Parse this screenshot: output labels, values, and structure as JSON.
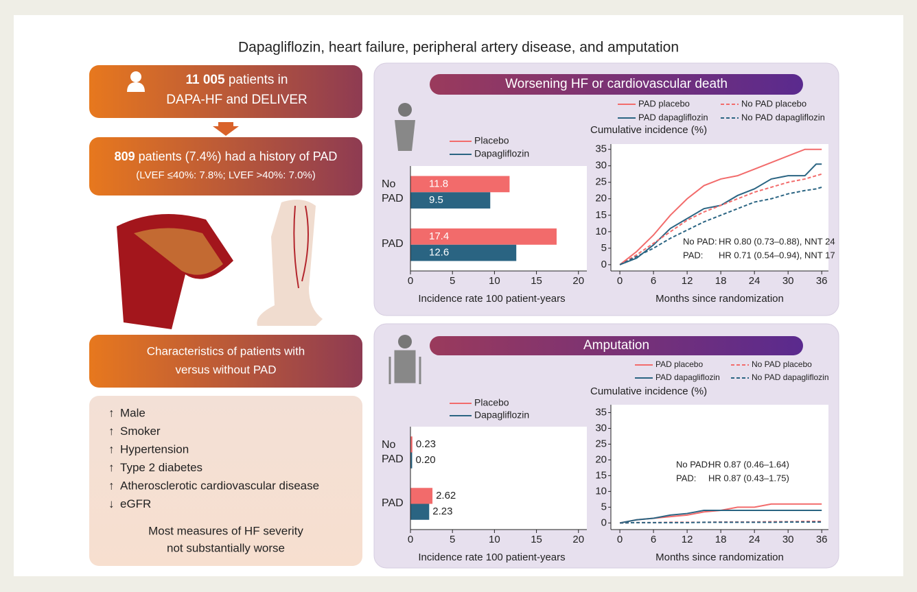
{
  "title": "Dapagliflozin, heart failure, peripheral artery disease, and amputation",
  "left": {
    "box1": {
      "count": "11 005",
      "text1": " patients in",
      "text2": "DAPA-HF and DELIVER"
    },
    "box2": {
      "count": "809",
      "text1": " patients (7.4%) had a history of PAD",
      "text2": "(LVEF ≤40%: 7.8%; LVEF >40%: 7.0%)"
    },
    "box3": {
      "lines": [
        "Characteristics of patients with",
        "versus without PAD"
      ]
    },
    "box4": {
      "items": [
        {
          "arrow": "↑",
          "text": "Male"
        },
        {
          "arrow": "↑",
          "text": "Smoker"
        },
        {
          "arrow": "↑",
          "text": "Hypertension"
        },
        {
          "arrow": "↑",
          "text": "Type 2 diabetes"
        },
        {
          "arrow": "↑",
          "text": "Atherosclerotic cardiovascular disease"
        },
        {
          "arrow": "↓",
          "text": "eGFR"
        }
      ],
      "note": [
        "Most measures of HF severity",
        "not substantially worse"
      ]
    }
  },
  "panels": [
    {
      "title": "Worsening HF or cardiovascular death"
    },
    {
      "title": "Amputation"
    }
  ],
  "chart_data": [
    {
      "type": "bar",
      "orientation": "horizontal",
      "categories": [
        "No PAD",
        "PAD"
      ],
      "series": [
        {
          "name": "Placebo",
          "color": "#f26b6b",
          "values": [
            11.8,
            17.4
          ]
        },
        {
          "name": "Dapagliflozin",
          "color": "#2a6482",
          "values": [
            9.5,
            12.6
          ]
        }
      ],
      "value_label_position": "inside",
      "xlim": [
        0,
        21
      ],
      "xticks": [
        0,
        5,
        10,
        15,
        20
      ],
      "xlabel": "Incidence rate 100 patient-years"
    },
    {
      "type": "line",
      "x": [
        0,
        3,
        6,
        9,
        12,
        15,
        18,
        21,
        24,
        27,
        30,
        33,
        35,
        36
      ],
      "series": [
        {
          "name": "PAD placebo",
          "color": "#f26b6b",
          "dashed": false,
          "values": [
            0,
            4,
            9,
            15,
            20,
            24,
            26,
            27,
            29,
            31,
            33,
            35,
            35,
            35
          ]
        },
        {
          "name": "PAD dapagliflozin",
          "color": "#2a6482",
          "dashed": false,
          "values": [
            0,
            2,
            6,
            11,
            14,
            17,
            18,
            21,
            23,
            26,
            27,
            27,
            30.5,
            30.5
          ]
        },
        {
          "name": "No PAD placebo",
          "color": "#f26b6b",
          "dashed": true,
          "values": [
            0,
            3,
            6.5,
            10,
            13.5,
            16,
            18,
            20,
            22,
            23.5,
            25,
            26,
            27,
            27.5
          ]
        },
        {
          "name": "No PAD dapagliflozin",
          "color": "#2a6482",
          "dashed": true,
          "values": [
            0,
            2.5,
            5,
            8,
            10.5,
            13,
            15,
            17,
            19,
            20,
            21.5,
            22.5,
            23,
            23.5
          ]
        }
      ],
      "xlim": [
        -1.6,
        37.2
      ],
      "xticks": [
        0,
        6,
        12,
        18,
        24,
        30,
        36
      ],
      "ylim": [
        -1.9,
        36.6
      ],
      "yticks": [
        0,
        5,
        10,
        15,
        20,
        25,
        30,
        35
      ],
      "xlabel": "Months since randomization",
      "ylabel": "Cumulative incidence (%)",
      "annotations": [
        {
          "label": "No PAD:",
          "text": "HR 0.80 (0.73–0.88), NNT 24"
        },
        {
          "label": "PAD:",
          "text": "HR 0.71 (0.54–0.94), NNT 17"
        }
      ]
    },
    {
      "type": "bar",
      "orientation": "horizontal",
      "categories": [
        "No PAD",
        "PAD"
      ],
      "series": [
        {
          "name": "Placebo",
          "color": "#f26b6b",
          "values": [
            0.23,
            2.62
          ],
          "value_labels": [
            "0.23",
            "2.62"
          ]
        },
        {
          "name": "Dapagliflozin",
          "color": "#2a6482",
          "values": [
            0.2,
            2.23
          ],
          "value_labels": [
            "0.20",
            "2.23"
          ]
        }
      ],
      "value_label_position": "outside",
      "xlim": [
        0,
        21
      ],
      "xticks": [
        0,
        5,
        10,
        15,
        20
      ],
      "xlabel": "Incidence rate 100 patient-years"
    },
    {
      "type": "line",
      "x": [
        0,
        3,
        6,
        9,
        12,
        15,
        18,
        21,
        24,
        27,
        30,
        33,
        35,
        36
      ],
      "series": [
        {
          "name": "PAD placebo",
          "color": "#f26b6b",
          "dashed": false,
          "values": [
            0,
            1,
            1.5,
            2,
            2.5,
            3.5,
            4,
            5,
            5,
            6,
            6,
            6,
            6,
            6
          ]
        },
        {
          "name": "PAD dapagliflozin",
          "color": "#2a6482",
          "dashed": false,
          "values": [
            0,
            1,
            1.5,
            2.5,
            3,
            4,
            4,
            4,
            4,
            4,
            4,
            4,
            4,
            4
          ]
        },
        {
          "name": "No PAD placebo",
          "color": "#f26b6b",
          "dashed": true,
          "values": [
            0,
            0.1,
            0.1,
            0.2,
            0.2,
            0.2,
            0.3,
            0.3,
            0.3,
            0.4,
            0.4,
            0.5,
            0.5,
            0.5
          ]
        },
        {
          "name": "No PAD dapagliflozin",
          "color": "#2a6482",
          "dashed": true,
          "values": [
            0,
            0.1,
            0.1,
            0.1,
            0.1,
            0.2,
            0.2,
            0.2,
            0.2,
            0.2,
            0.3,
            0.3,
            0.3,
            0.3
          ]
        }
      ],
      "xlim": [
        -1.6,
        37.2
      ],
      "xticks": [
        0,
        6,
        12,
        18,
        24,
        30,
        36
      ],
      "ylim": [
        -2.1,
        37.5
      ],
      "yticks": [
        0,
        5,
        10,
        15,
        20,
        25,
        30,
        35
      ],
      "xlabel": "Months since randomization",
      "ylabel": "Cumulative incidence (%)",
      "annotations": [
        {
          "label": "No PAD:",
          "text": "HR 0.87 (0.46–1.64)"
        },
        {
          "label": "PAD:",
          "text": "HR 0.87 (0.43–1.75)"
        }
      ]
    }
  ]
}
